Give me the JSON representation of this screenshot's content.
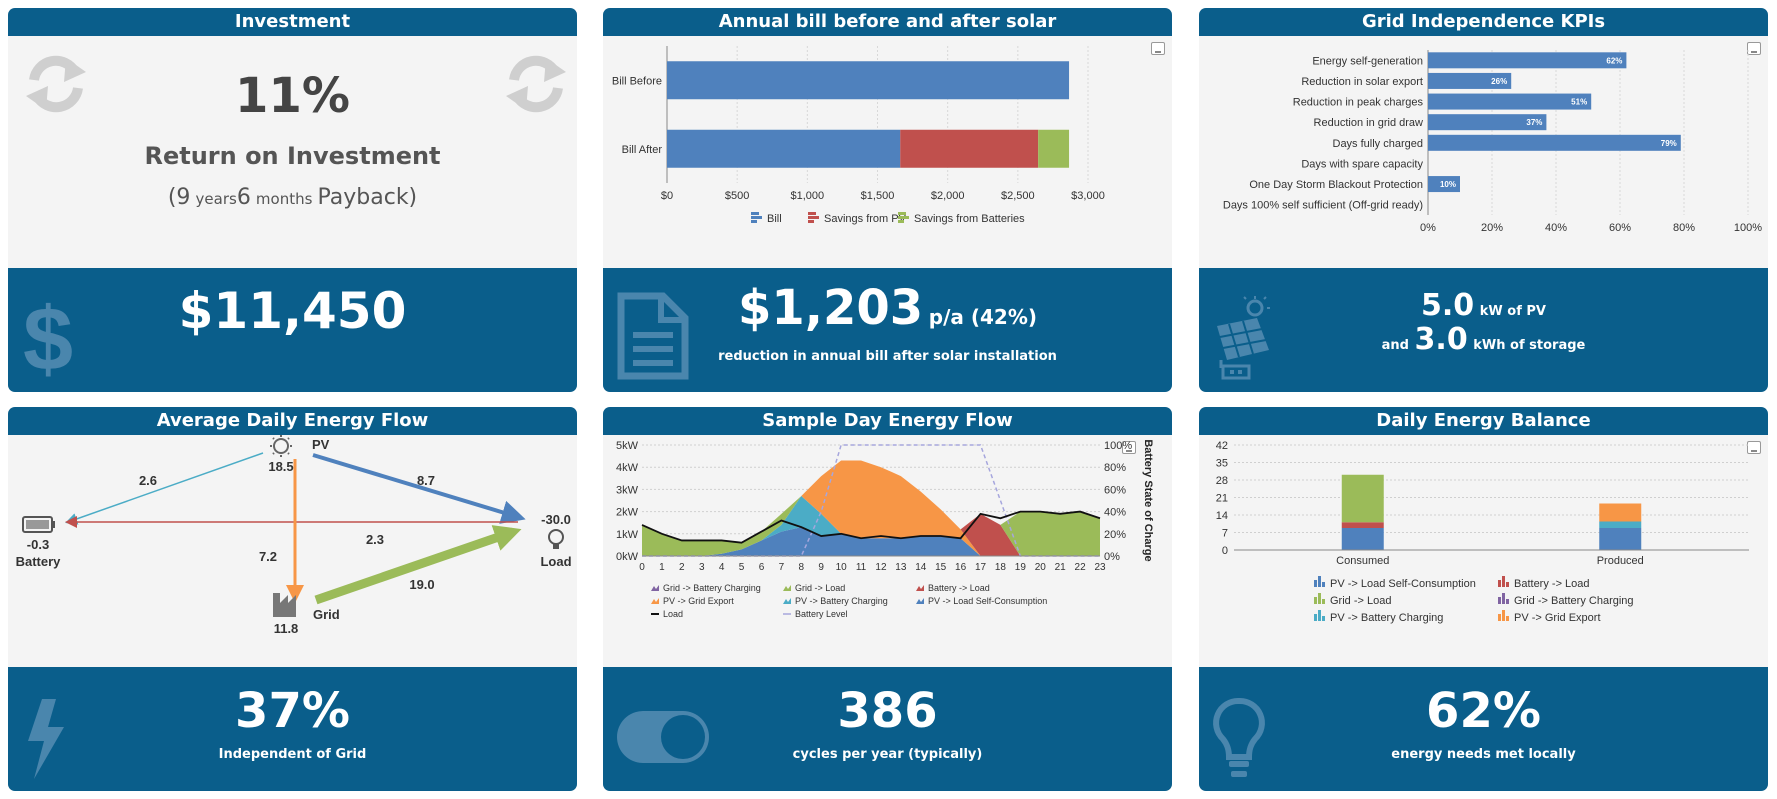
{
  "investment": {
    "title": "Investment",
    "roi_value": "11%",
    "roi_label": "Return on Investment",
    "payback_open": "(9",
    "payback_years_unit": "years",
    "payback_months": "6",
    "payback_months_unit": "months",
    "payback_close": "Payback)",
    "cost": "$11,450",
    "icons": [
      "refresh-icon",
      "refresh-icon",
      "dollar-icon"
    ]
  },
  "bill": {
    "title": "Annual bill before and after solar",
    "savings_value": "$1,203",
    "savings_suffix": "p/a (42%)",
    "savings_caption": "reduction in annual bill after solar installation",
    "icons": [
      "document-icon",
      "download-icon"
    ]
  },
  "kpis": {
    "title": "Grid Independence KPIs",
    "pv_value": "5.0",
    "pv_unit": "kW of PV",
    "and_word": "and",
    "storage_value": "3.0",
    "storage_unit": "kWh of storage",
    "icons": [
      "solar-panel-icon",
      "download-icon"
    ]
  },
  "flow": {
    "title": "Average Daily Energy Flow",
    "nodes": {
      "pv_label": "PV",
      "pv_value": "18.5",
      "battery_label": "Battery",
      "battery_value": "-0.3",
      "load_label": "Load",
      "load_value": "-30.0",
      "grid_label": "Grid",
      "grid_value": "11.8"
    },
    "edges": {
      "pv_battery": "2.6",
      "pv_load": "8.7",
      "grid_battery": "2.3",
      "pv_grid": "7.2",
      "grid_load": "19.0"
    },
    "independence_value": "37%",
    "independence_caption": "Independent of Grid",
    "icons": [
      "sun-icon",
      "battery-icon",
      "bulb-icon",
      "factory-icon",
      "lightning-icon"
    ]
  },
  "sample": {
    "title": "Sample Day Energy Flow",
    "cycles_value": "386",
    "cycles_caption": "cycles per year (typically)",
    "icons": [
      "toggle-icon",
      "download-icon"
    ]
  },
  "balance": {
    "title": "Daily Energy Balance",
    "local_value": "62%",
    "local_caption": "energy needs met locally",
    "icons": [
      "bulb-icon",
      "download-icon"
    ]
  },
  "colors": {
    "brand": "#0a5e8b",
    "blue": "#4f81bd",
    "red": "#c0504d",
    "green": "#9bbb59",
    "orange": "#f79646",
    "purple": "#8064a2",
    "aqua": "#4bacc6"
  },
  "chart_data": [
    {
      "id": "bill",
      "type": "bar",
      "orientation": "horizontal",
      "stacked": true,
      "categories": [
        "Bill Before",
        "Bill After"
      ],
      "series": [
        {
          "name": "Bill",
          "values": [
            2865,
            1662
          ],
          "color": "#4f81bd"
        },
        {
          "name": "Savings from PV",
          "values": [
            0,
            983
          ],
          "color": "#c0504d"
        },
        {
          "name": "Savings from Batteries",
          "values": [
            0,
            220
          ],
          "color": "#9bbb59"
        }
      ],
      "xlim": [
        0,
        3000
      ],
      "xticks": [
        0,
        500,
        1000,
        1500,
        2000,
        2500,
        3000
      ],
      "xtick_labels": [
        "$0",
        "$500",
        "$1,000",
        "$1,500",
        "$2,000",
        "$2,500",
        "$3,000"
      ],
      "legend": "bottom"
    },
    {
      "id": "kpis",
      "type": "bar",
      "orientation": "horizontal",
      "categories": [
        "Energy self-generation",
        "Reduction in solar export",
        "Reduction in peak charges",
        "Reduction in grid draw",
        "Days fully charged",
        "Days with spare capacity",
        "One Day Storm Blackout Protection",
        "Days 100% self sufficient (Off-grid ready)"
      ],
      "values": [
        62,
        26,
        51,
        37,
        79,
        0,
        10,
        0
      ],
      "data_labels": [
        "62%",
        "26%",
        "51%",
        "37%",
        "79%",
        "",
        "10%",
        ""
      ],
      "xlim": [
        0,
        100
      ],
      "xticks": [
        0,
        20,
        40,
        60,
        80,
        100
      ],
      "xtick_labels": [
        "0%",
        "20%",
        "40%",
        "60%",
        "80%",
        "100%"
      ],
      "color": "#4f81bd"
    },
    {
      "id": "sample",
      "type": "area",
      "stacked": true,
      "x": [
        0,
        1,
        2,
        3,
        4,
        5,
        6,
        7,
        8,
        9,
        10,
        11,
        12,
        13,
        14,
        15,
        16,
        17,
        18,
        19,
        20,
        21,
        22,
        23
      ],
      "xlabel": "",
      "ylim": [
        0,
        5
      ],
      "yticks": [
        0,
        1,
        2,
        3,
        4,
        5
      ],
      "ytick_labels": [
        "0kW",
        "1kW",
        "2kW",
        "3kW",
        "4kW",
        "5kW"
      ],
      "y2label": "Battery State of Charge",
      "y2lim": [
        0,
        100
      ],
      "y2ticks": [
        0,
        20,
        40,
        60,
        80,
        100
      ],
      "y2tick_labels": [
        "0%",
        "20%",
        "40%",
        "60%",
        "80%",
        "100%"
      ],
      "series": [
        {
          "name": "PV -> Load Self-Consumption",
          "color": "#4f81bd",
          "values": [
            0,
            0,
            0,
            0,
            0.1,
            0.3,
            0.7,
            1.1,
            1.3,
            0.9,
            1.0,
            0.8,
            0.8,
            0.8,
            0.9,
            0.9,
            0.8,
            0,
            0,
            0,
            0,
            0,
            0,
            0
          ]
        },
        {
          "name": "PV -> Battery Charging",
          "color": "#4bacc6",
          "values": [
            0,
            0,
            0,
            0,
            0,
            0,
            0,
            0.3,
            1.4,
            1.0,
            0,
            0,
            0,
            0,
            0,
            0,
            0,
            0,
            0,
            0,
            0,
            0,
            0,
            0
          ]
        },
        {
          "name": "PV -> Grid Export",
          "color": "#f79646",
          "values": [
            0,
            0,
            0,
            0,
            0,
            0,
            0,
            0,
            0,
            1.7,
            3.3,
            3.5,
            3.2,
            2.8,
            2.0,
            1.2,
            0.4,
            0,
            0,
            0,
            0,
            0,
            0,
            0
          ]
        },
        {
          "name": "Battery -> Load",
          "color": "#c0504d",
          "values": [
            0,
            0,
            0,
            0,
            0,
            0,
            0,
            0,
            0,
            0,
            0,
            0,
            0,
            0,
            0,
            0,
            0,
            1.9,
            1.4,
            0,
            0,
            0,
            0,
            0
          ]
        },
        {
          "name": "Grid -> Load",
          "color": "#9bbb59",
          "values": [
            1.4,
            1.0,
            0.7,
            0.7,
            0.6,
            0.3,
            0.4,
            0.5,
            0,
            0,
            0,
            0,
            0,
            0,
            0,
            0,
            0,
            0,
            0,
            2.0,
            2.0,
            1.9,
            2.0,
            1.7
          ]
        },
        {
          "name": "Grid -> Battery Charging",
          "color": "#8064a2",
          "values": [
            0,
            0,
            0,
            0,
            0,
            0,
            0,
            0,
            0,
            0,
            0,
            0,
            0,
            0,
            0,
            0,
            0,
            0,
            0,
            0,
            0,
            0,
            0,
            0
          ]
        }
      ],
      "load": {
        "name": "Load",
        "values": [
          1.4,
          1.0,
          0.7,
          0.7,
          0.7,
          0.6,
          1.1,
          1.6,
          1.3,
          0.9,
          1.0,
          0.8,
          0.9,
          0.8,
          0.9,
          0.9,
          0.8,
          1.9,
          1.7,
          2.0,
          2.0,
          1.9,
          2.0,
          1.7
        ]
      },
      "battery_level": {
        "name": "Battery Level",
        "values": [
          0,
          0,
          0,
          0,
          0,
          0,
          0,
          0,
          0,
          40,
          100,
          100,
          100,
          100,
          100,
          100,
          100,
          100,
          50,
          0,
          0,
          0,
          0,
          0
        ]
      },
      "legend": "bottom"
    },
    {
      "id": "balance",
      "type": "bar",
      "stacked": true,
      "categories": [
        "Consumed",
        "Produced"
      ],
      "series": [
        {
          "name": "PV -> Load Self-Consumption",
          "values": [
            8.8,
            8.8
          ],
          "color": "#4f81bd"
        },
        {
          "name": "Battery -> Load",
          "values": [
            2.3,
            0
          ],
          "color": "#c0504d"
        },
        {
          "name": "Grid -> Load",
          "values": [
            19.0,
            0
          ],
          "color": "#9bbb59"
        },
        {
          "name": "Grid -> Battery Charging",
          "values": [
            0,
            0
          ],
          "color": "#8064a2"
        },
        {
          "name": "PV -> Battery Charging",
          "values": [
            0,
            2.6
          ],
          "color": "#4bacc6"
        },
        {
          "name": "PV -> Grid Export",
          "values": [
            0,
            7.2
          ],
          "color": "#f79646"
        }
      ],
      "ylim": [
        0,
        42
      ],
      "yticks": [
        0,
        7,
        14,
        21,
        28,
        35,
        42
      ],
      "legend": "bottom"
    }
  ]
}
